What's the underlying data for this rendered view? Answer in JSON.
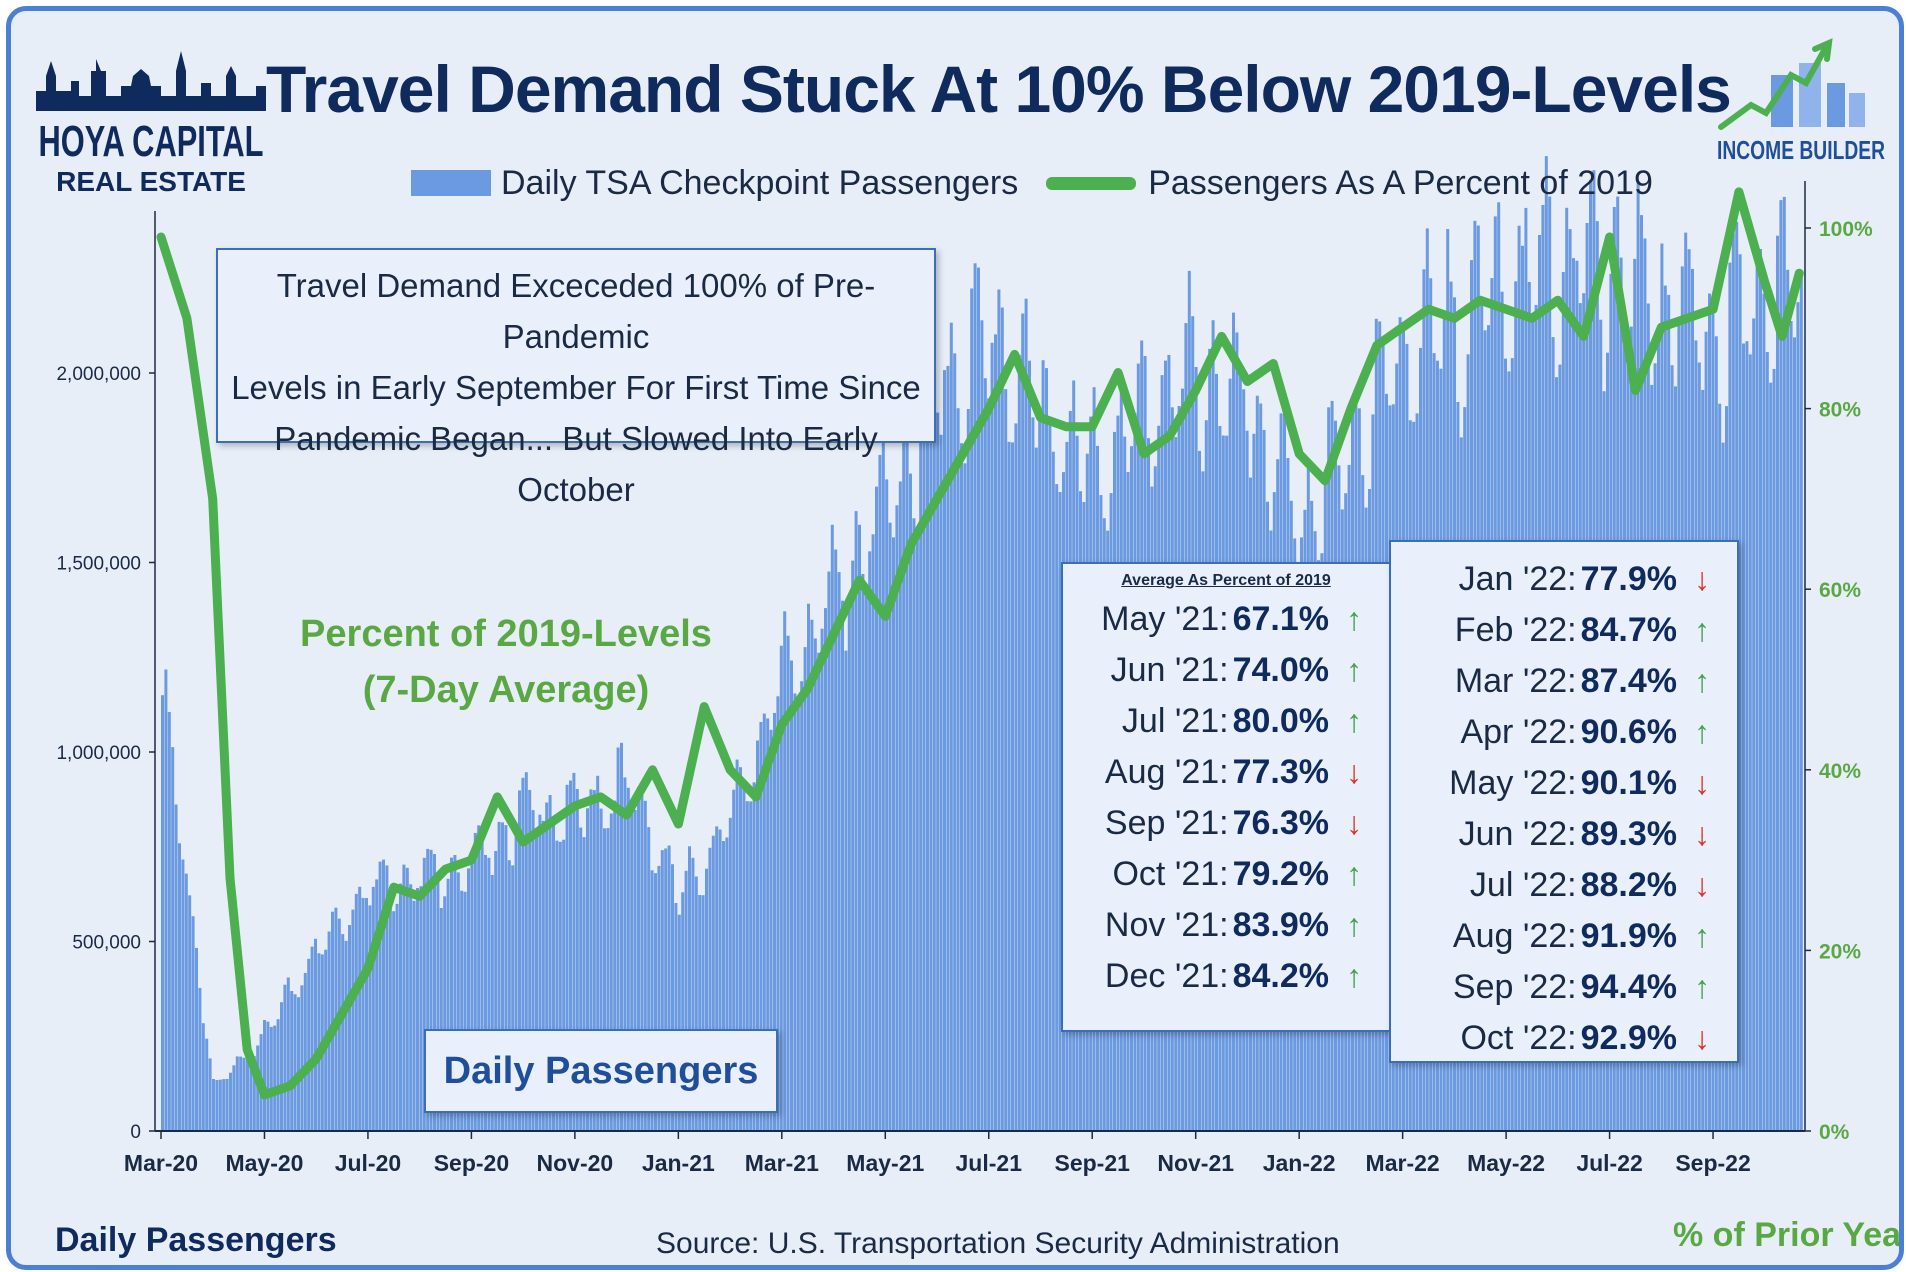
{
  "header": {
    "title": "Travel Demand Stuck At 10% Below 2019-Levels",
    "logo_left_line1": "HOYA CAPITAL",
    "logo_left_line2": "REAL ESTATE",
    "logo_right_text": "INCOME BUILDER"
  },
  "legend": {
    "bar_label": "Daily TSA Checkpoint Passengers",
    "line_label": "Passengers As A Percent of 2019"
  },
  "callout": {
    "line1": "Travel Demand Exceceded 100% of Pre-Pandemic",
    "line2": "Levels in Early September For First Time Since",
    "line3": "Pandemic Began... But Slowed Into Early October"
  },
  "annotations": {
    "green_label_line1": "Percent of 2019-Levels",
    "green_label_line2": "(7-Day Average)",
    "daily_box": "Daily Passengers"
  },
  "averages": {
    "heading": "Average As Percent of 2019",
    "col1": [
      {
        "month": "May '21:",
        "value": "67.1%",
        "dir": "up"
      },
      {
        "month": "Jun '21:",
        "value": "74.0%",
        "dir": "up"
      },
      {
        "month": "Jul '21:",
        "value": "80.0%",
        "dir": "up"
      },
      {
        "month": "Aug '21:",
        "value": "77.3%",
        "dir": "down"
      },
      {
        "month": "Sep '21:",
        "value": "76.3%",
        "dir": "down"
      },
      {
        "month": "Oct '21:",
        "value": "79.2%",
        "dir": "up"
      },
      {
        "month": "Nov '21:",
        "value": "83.9%",
        "dir": "up"
      },
      {
        "month": "Dec '21:",
        "value": "84.2%",
        "dir": "up"
      }
    ],
    "col2": [
      {
        "month": "Jan '22:",
        "value": "77.9%",
        "dir": "down"
      },
      {
        "month": "Feb '22:",
        "value": "84.7%",
        "dir": "up"
      },
      {
        "month": "Mar '22:",
        "value": "87.4%",
        "dir": "up"
      },
      {
        "month": "Apr '22:",
        "value": "90.6%",
        "dir": "up"
      },
      {
        "month": "May '22:",
        "value": "90.1%",
        "dir": "down"
      },
      {
        "month": "Jun '22:",
        "value": "89.3%",
        "dir": "down"
      },
      {
        "month": "Jul '22:",
        "value": "88.2%",
        "dir": "down"
      },
      {
        "month": "Aug '22:",
        "value": "91.9%",
        "dir": "up"
      },
      {
        "month": "Sep '22:",
        "value": "94.4%",
        "dir": "up"
      },
      {
        "month": "Oct '22:",
        "value": "92.9%",
        "dir": "down"
      }
    ]
  },
  "footer": {
    "y_left_caption": "Daily Passengers",
    "y_right_caption": "% of Prior Year",
    "source": "Source: U.S. Transportation Security Administration"
  },
  "colors": {
    "bar": "#6b9ae0",
    "line": "#4caf50",
    "up_arrow": "#3fa34d",
    "down_arrow": "#d9342b",
    "navy": "#0f2a5c",
    "frame": "#4a7fd6"
  },
  "chart_data": {
    "type": "bar+line",
    "x_tick_labels": [
      "Mar-20",
      "May-20",
      "Jul-20",
      "Sep-20",
      "Nov-20",
      "Jan-21",
      "Mar-21",
      "May-21",
      "Jul-21",
      "Sep-21",
      "Nov-21",
      "Jan-22",
      "Mar-22",
      "May-22",
      "Jul-22",
      "Sep-22"
    ],
    "y_left": {
      "min": 0,
      "max": 2500000,
      "ticks": [
        0,
        500000,
        1000000,
        1500000,
        2000000
      ],
      "tick_labels": [
        "0",
        "500,000",
        "1,000,000",
        "1,500,000",
        "2,000,000"
      ]
    },
    "y_right": {
      "min": 0,
      "max": 1.0,
      "ticks": [
        0,
        0.2,
        0.4,
        0.6,
        0.8,
        1.0
      ],
      "tick_labels": [
        "0%",
        "20%",
        "40%",
        "60%",
        "80%",
        "100%"
      ]
    },
    "months": [
      "Mar-20",
      "Apr-20",
      "May-20",
      "Jun-20",
      "Jul-20",
      "Aug-20",
      "Sep-20",
      "Oct-20",
      "Nov-20",
      "Dec-20",
      "Jan-21",
      "Feb-21",
      "Mar-21",
      "Apr-21",
      "May-21",
      "Jun-21",
      "Jul-21",
      "Aug-21",
      "Sep-21",
      "Oct-21",
      "Nov-21",
      "Dec-21",
      "Jan-22",
      "Feb-22",
      "Mar-22",
      "Apr-22",
      "May-22",
      "Jun-22",
      "Jul-22",
      "Aug-22",
      "Sep-22",
      "Oct-22"
    ],
    "series": [
      {
        "name": "Daily TSA Checkpoint Passengers",
        "kind": "bar",
        "axis": "left",
        "monthly_avg": [
          1150000,
          110000,
          260000,
          480000,
          650000,
          680000,
          700000,
          850000,
          840000,
          920000,
          620000,
          830000,
          1200000,
          1420000,
          1650000,
          1950000,
          2100000,
          1900000,
          1750000,
          1900000,
          2000000,
          1900000,
          1580000,
          1820000,
          2050000,
          2130000,
          2250000,
          2280000,
          2290000,
          2180000,
          2100000,
          2200000
        ]
      },
      {
        "name": "Passengers As A Percent of 2019",
        "kind": "line",
        "axis": "right",
        "points": [
          [
            "Mar-20",
            0.99
          ],
          [
            "Mar-20",
            0.9
          ],
          [
            "Apr-20",
            0.7
          ],
          [
            "Apr-20",
            0.28
          ],
          [
            "Apr-20",
            0.09
          ],
          [
            "May-20",
            0.04
          ],
          [
            "May-20",
            0.05
          ],
          [
            "Jun-20",
            0.08
          ],
          [
            "Jun-20",
            0.13
          ],
          [
            "Jul-20",
            0.18
          ],
          [
            "Jul-20",
            0.27
          ],
          [
            "Aug-20",
            0.26
          ],
          [
            "Aug-20",
            0.29
          ],
          [
            "Sep-20",
            0.3
          ],
          [
            "Sep-20",
            0.37
          ],
          [
            "Oct-20",
            0.32
          ],
          [
            "Oct-20",
            0.34
          ],
          [
            "Nov-20",
            0.36
          ],
          [
            "Nov-20",
            0.37
          ],
          [
            "Dec-20",
            0.35
          ],
          [
            "Dec-20",
            0.4
          ],
          [
            "Jan-21",
            0.34
          ],
          [
            "Jan-21",
            0.47
          ],
          [
            "Feb-21",
            0.4
          ],
          [
            "Feb-21",
            0.37
          ],
          [
            "Mar-21",
            0.45
          ],
          [
            "Mar-21",
            0.49
          ],
          [
            "Apr-21",
            0.55
          ],
          [
            "Apr-21",
            0.61
          ],
          [
            "May-21",
            0.57
          ],
          [
            "May-21",
            0.65
          ],
          [
            "Jun-21",
            0.7
          ],
          [
            "Jun-21",
            0.75
          ],
          [
            "Jul-21",
            0.8
          ],
          [
            "Jul-21",
            0.86
          ],
          [
            "Aug-21",
            0.79
          ],
          [
            "Aug-21",
            0.78
          ],
          [
            "Sep-21",
            0.78
          ],
          [
            "Sep-21",
            0.84
          ],
          [
            "Oct-21",
            0.75
          ],
          [
            "Oct-21",
            0.77
          ],
          [
            "Nov-21",
            0.82
          ],
          [
            "Nov-21",
            0.88
          ],
          [
            "Dec-21",
            0.83
          ],
          [
            "Dec-21",
            0.85
          ],
          [
            "Jan-22",
            0.75
          ],
          [
            "Jan-22",
            0.72
          ],
          [
            "Feb-22",
            0.8
          ],
          [
            "Feb-22",
            0.87
          ],
          [
            "Mar-22",
            0.89
          ],
          [
            "Mar-22",
            0.91
          ],
          [
            "Apr-22",
            0.9
          ],
          [
            "Apr-22",
            0.92
          ],
          [
            "May-22",
            0.91
          ],
          [
            "May-22",
            0.9
          ],
          [
            "Jun-22",
            0.92
          ],
          [
            "Jun-22",
            0.88
          ],
          [
            "Jul-22",
            0.99
          ],
          [
            "Jul-22",
            0.82
          ],
          [
            "Aug-22",
            0.89
          ],
          [
            "Aug-22",
            0.9
          ],
          [
            "Sep-22",
            0.91
          ],
          [
            "Sep-22",
            1.04
          ],
          [
            "Oct-22",
            0.94
          ],
          [
            "Oct-22",
            0.88
          ],
          [
            "Oct-22",
            0.95
          ]
        ]
      }
    ],
    "legend_position": "top-center",
    "grid": false
  }
}
